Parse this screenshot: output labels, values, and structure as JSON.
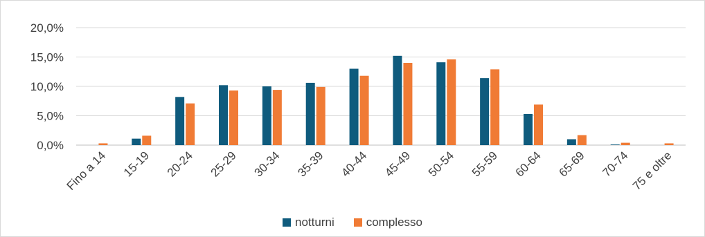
{
  "chart_data": {
    "type": "bar",
    "title": "",
    "xlabel": "",
    "ylabel": "",
    "categories": [
      "Fino a 14",
      "15-19",
      "20-24",
      "25-29",
      "30-34",
      "35-39",
      "40-44",
      "45-49",
      "50-54",
      "55-59",
      "60-64",
      "65-69",
      "70-74",
      "75 e oltre"
    ],
    "series": [
      {
        "name": "notturni",
        "color": "#0f5b7d",
        "values": [
          0.0,
          1.1,
          8.2,
          10.2,
          10.0,
          10.6,
          13.0,
          15.2,
          14.1,
          11.4,
          5.3,
          1.0,
          0.1,
          0.0
        ]
      },
      {
        "name": "complesso",
        "color": "#f07b35",
        "values": [
          0.3,
          1.6,
          7.1,
          9.3,
          9.4,
          9.9,
          11.8,
          14.0,
          14.6,
          12.9,
          6.9,
          1.7,
          0.4,
          0.3
        ]
      }
    ],
    "ylim": [
      0,
      20
    ],
    "yticks": [
      "0,0%",
      "5,0%",
      "10,0%",
      "15,0%",
      "20,0%"
    ],
    "grid": true,
    "legend_position": "bottom"
  }
}
